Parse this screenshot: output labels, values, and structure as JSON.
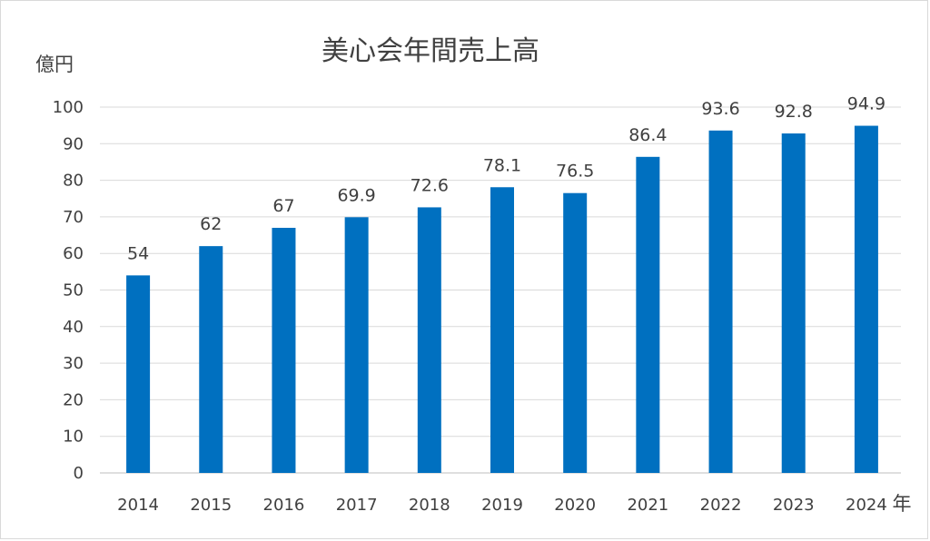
{
  "chart_data": {
    "type": "bar",
    "title": "美心会年間売上高",
    "ylabel": "億円",
    "xlabel": "年",
    "categories": [
      "2014",
      "2015",
      "2016",
      "2017",
      "2018",
      "2019",
      "2020",
      "2021",
      "2022",
      "2023",
      "2024"
    ],
    "values": [
      54,
      62,
      67,
      69.9,
      72.6,
      78.1,
      76.5,
      86.4,
      93.6,
      92.8,
      94.9
    ],
    "ylim": [
      0,
      100
    ],
    "yticks": [
      0,
      10,
      20,
      30,
      40,
      50,
      60,
      70,
      80,
      90,
      100
    ],
    "grid": true,
    "legend": "none",
    "bar_color": "#0070c0"
  }
}
